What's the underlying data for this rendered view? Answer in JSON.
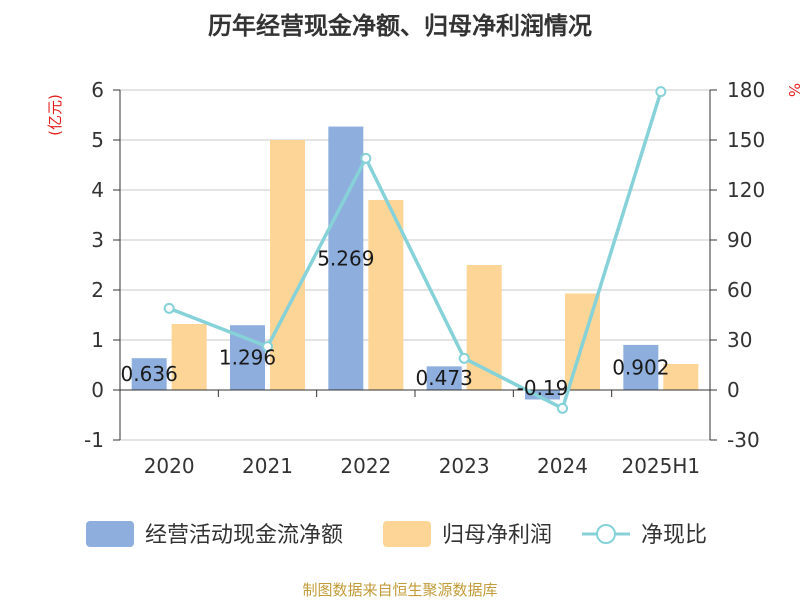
{
  "chart_data": {
    "type": "bar",
    "title": "历年经营现金净额、归母净利润情况",
    "left_axis_unit": "(亿元)",
    "right_axis_unit": "%",
    "categories": [
      "2020",
      "2021",
      "2022",
      "2023",
      "2024",
      "2025H1"
    ],
    "y_left": {
      "range": [
        -1,
        6
      ],
      "ticks": [
        "-1",
        "0",
        "1",
        "2",
        "3",
        "4",
        "5",
        "6"
      ]
    },
    "y_right": {
      "range": [
        -30,
        180
      ],
      "ticks": [
        "-30",
        "0",
        "30",
        "60",
        "90",
        "120",
        "150",
        "180"
      ]
    },
    "series": [
      {
        "name": "经营活动现金流净额",
        "kind": "bar",
        "axis": "left",
        "color": "#8eaedd",
        "values": [
          0.636,
          1.296,
          5.269,
          0.473,
          -0.19,
          0.902
        ],
        "labels": [
          "0.636",
          "1.296",
          "5.269",
          "0.473",
          "-0.19",
          "0.902"
        ]
      },
      {
        "name": "归母净利润",
        "kind": "bar",
        "axis": "left",
        "color": "#fdd597",
        "values": [
          1.32,
          5.0,
          3.8,
          2.5,
          1.93,
          0.52
        ]
      },
      {
        "name": "净现比",
        "kind": "line",
        "axis": "right",
        "color": "#86d2d8",
        "values": [
          49,
          26,
          139,
          19,
          -11,
          179
        ]
      }
    ],
    "grid": true,
    "legend_position": "bottom",
    "source": "制图数据来自恒生聚源数据库",
    "colors": {
      "title": "#333333",
      "axis_unit": "#e32020",
      "tick_text": "#333333",
      "grid": "#c8c8c8",
      "axis": "#333333",
      "source": "#c29c3a"
    }
  }
}
